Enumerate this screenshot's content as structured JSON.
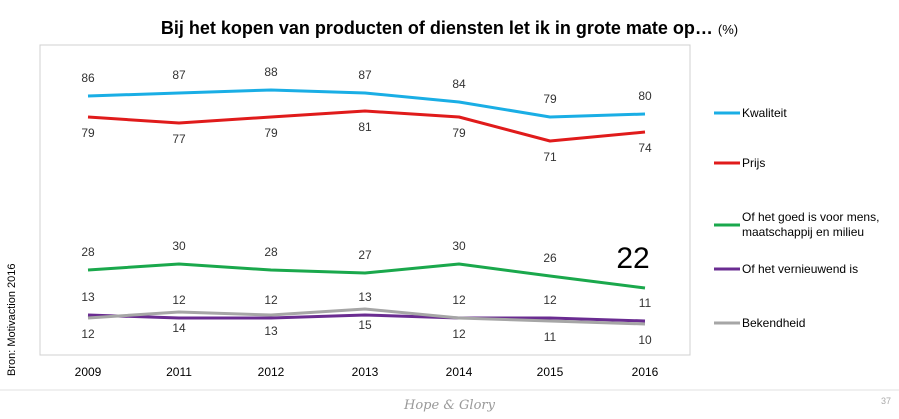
{
  "chart_data": {
    "type": "line",
    "title": "Bij het kopen van producten of diensten let ik in grote mate op…",
    "title_unit": "(%)",
    "source": "Bron: Motivaction 2016",
    "footer": "Hope & Glory",
    "page_number": "37",
    "categories": [
      "2009",
      "2011",
      "2012",
      "2013",
      "2014",
      "2015",
      "2016"
    ],
    "ylim": [
      0,
      103
    ],
    "series": [
      {
        "name": "Kwaliteit",
        "color": "#1aaee5",
        "values": [
          86,
          87,
          88,
          87,
          84,
          79,
          80
        ],
        "label_pos": "above"
      },
      {
        "name": "Prijs",
        "color": "#e01b1b",
        "values": [
          79,
          77,
          79,
          81,
          79,
          71,
          74
        ],
        "label_pos": "below"
      },
      {
        "name": "Of het goed is voor mens, maatschappij en milieu",
        "color": "#1aa84c",
        "values": [
          28,
          30,
          28,
          27,
          30,
          26,
          22
        ],
        "label_pos": "above"
      },
      {
        "name": "Of het vernieuwend is",
        "color": "#6a2c91",
        "values": [
          13,
          12,
          12,
          13,
          12,
          12,
          11
        ],
        "label_pos": "above"
      },
      {
        "name": "Bekendheid",
        "color": "#a6a6a6",
        "values": [
          12,
          14,
          13,
          15,
          12,
          11,
          10
        ],
        "label_pos": "below"
      }
    ],
    "highlight": {
      "series": 2,
      "index": 6
    }
  }
}
